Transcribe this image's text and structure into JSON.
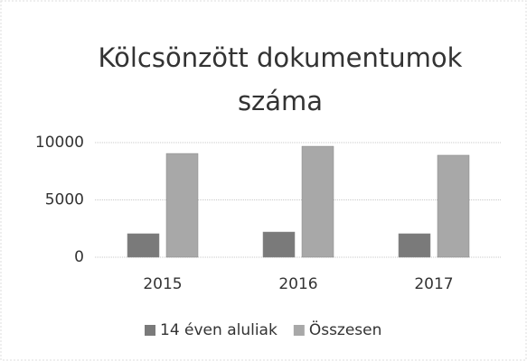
{
  "chart_data": {
    "type": "bar",
    "title": "Kölcsönzött dokumentumok száma",
    "categories": [
      "2015",
      "2016",
      "2017"
    ],
    "series": [
      {
        "name": "14 éven aluliak",
        "color": "#7a7a7a",
        "values": [
          2050,
          2200,
          2050
        ]
      },
      {
        "name": "Összesen",
        "color": "#a8a8a8",
        "values": [
          9050,
          9680,
          8900
        ]
      }
    ],
    "ylim": [
      0,
      10000
    ],
    "yticks": [
      0,
      5000,
      10000
    ],
    "grid": true,
    "legend": "bottom"
  }
}
